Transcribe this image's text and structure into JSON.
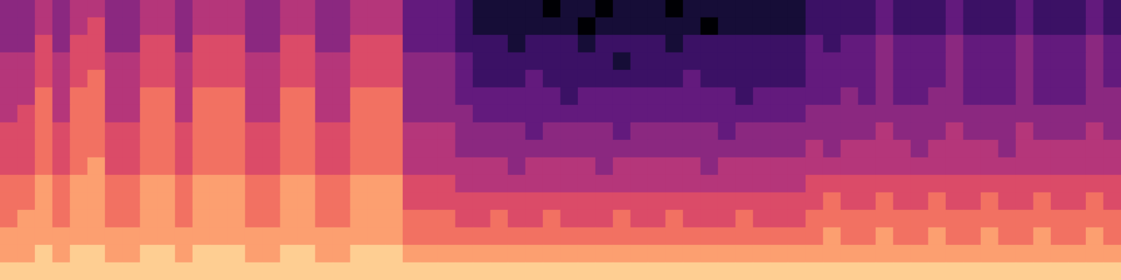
{
  "chart_data": {
    "type": "heatmap",
    "tick_labels": false,
    "clim": [
      0,
      10
    ],
    "cells": [
      [
        4,
        4,
        5,
        4,
        5,
        5,
        4,
        4,
        5,
        5,
        4,
        5,
        5,
        5,
        4,
        4,
        5,
        5,
        4,
        4,
        5,
        5,
        5,
        3,
        3,
        3,
        2,
        1,
        1,
        1,
        1,
        0,
        1,
        1,
        0,
        1,
        1,
        1,
        0,
        1,
        1,
        1,
        1,
        1,
        1,
        1,
        2,
        2,
        2,
        2,
        3,
        2,
        2,
        2,
        3,
        2,
        2,
        2,
        3,
        2,
        2,
        2,
        3,
        2
      ],
      [
        4,
        4,
        5,
        4,
        5,
        6,
        4,
        4,
        5,
        5,
        4,
        5,
        5,
        5,
        4,
        4,
        5,
        5,
        4,
        4,
        5,
        5,
        5,
        3,
        3,
        3,
        2,
        1,
        1,
        1,
        1,
        1,
        1,
        0,
        1,
        1,
        1,
        1,
        1,
        1,
        0,
        1,
        1,
        1,
        1,
        1,
        2,
        2,
        2,
        2,
        3,
        2,
        2,
        2,
        3,
        2,
        2,
        2,
        3,
        2,
        2,
        2,
        3,
        2
      ],
      [
        4,
        4,
        6,
        4,
        6,
        6,
        4,
        4,
        6,
        6,
        4,
        6,
        6,
        6,
        4,
        4,
        6,
        6,
        4,
        4,
        6,
        6,
        6,
        3,
        3,
        3,
        2,
        2,
        2,
        1,
        2,
        2,
        2,
        1,
        2,
        2,
        2,
        2,
        1,
        2,
        2,
        2,
        2,
        2,
        2,
        2,
        3,
        2,
        3,
        3,
        4,
        3,
        3,
        3,
        4,
        3,
        3,
        3,
        4,
        3,
        3,
        3,
        4,
        3
      ],
      [
        5,
        5,
        6,
        5,
        6,
        6,
        5,
        5,
        6,
        6,
        5,
        6,
        6,
        6,
        5,
        5,
        6,
        6,
        5,
        5,
        6,
        6,
        6,
        4,
        4,
        4,
        3,
        2,
        2,
        2,
        2,
        2,
        2,
        2,
        2,
        1,
        2,
        2,
        2,
        2,
        2,
        2,
        2,
        2,
        2,
        2,
        3,
        3,
        3,
        3,
        4,
        3,
        3,
        3,
        4,
        3,
        3,
        3,
        4,
        3,
        3,
        3,
        4,
        3
      ],
      [
        5,
        5,
        6,
        5,
        6,
        7,
        5,
        5,
        6,
        6,
        5,
        6,
        6,
        6,
        5,
        5,
        6,
        6,
        5,
        5,
        6,
        6,
        6,
        4,
        4,
        4,
        3,
        2,
        2,
        2,
        3,
        2,
        2,
        2,
        2,
        2,
        2,
        2,
        2,
        3,
        2,
        2,
        2,
        2,
        2,
        2,
        3,
        3,
        3,
        3,
        4,
        3,
        3,
        3,
        4,
        3,
        3,
        3,
        4,
        3,
        3,
        3,
        4,
        3
      ],
      [
        5,
        5,
        7,
        5,
        7,
        7,
        5,
        5,
        7,
        7,
        5,
        7,
        7,
        7,
        5,
        5,
        7,
        7,
        5,
        5,
        7,
        7,
        7,
        4,
        4,
        4,
        3,
        3,
        3,
        3,
        3,
        3,
        2,
        3,
        3,
        3,
        3,
        3,
        3,
        3,
        3,
        3,
        2,
        3,
        3,
        3,
        3,
        3,
        4,
        3,
        4,
        3,
        3,
        4,
        4,
        3,
        3,
        3,
        4,
        3,
        3,
        3,
        4,
        4
      ],
      [
        5,
        6,
        7,
        5,
        7,
        7,
        5,
        5,
        7,
        7,
        5,
        7,
        7,
        7,
        5,
        5,
        7,
        7,
        5,
        5,
        7,
        7,
        7,
        4,
        4,
        4,
        4,
        3,
        3,
        3,
        3,
        3,
        3,
        3,
        3,
        3,
        3,
        3,
        3,
        3,
        3,
        3,
        3,
        3,
        3,
        3,
        4,
        4,
        4,
        4,
        4,
        4,
        4,
        4,
        4,
        4,
        4,
        4,
        4,
        4,
        4,
        4,
        4,
        4
      ],
      [
        6,
        6,
        7,
        6,
        7,
        7,
        6,
        6,
        7,
        7,
        6,
        7,
        7,
        7,
        6,
        6,
        7,
        7,
        6,
        6,
        7,
        7,
        7,
        5,
        5,
        5,
        4,
        4,
        4,
        4,
        3,
        4,
        4,
        4,
        4,
        3,
        4,
        4,
        4,
        4,
        4,
        3,
        4,
        4,
        4,
        4,
        4,
        4,
        4,
        4,
        5,
        4,
        4,
        4,
        5,
        4,
        4,
        4,
        5,
        4,
        4,
        4,
        5,
        4
      ],
      [
        6,
        6,
        7,
        6,
        7,
        7,
        6,
        6,
        7,
        7,
        6,
        7,
        7,
        7,
        6,
        6,
        7,
        7,
        6,
        6,
        7,
        7,
        7,
        5,
        5,
        5,
        4,
        4,
        4,
        4,
        4,
        4,
        4,
        4,
        4,
        4,
        4,
        4,
        4,
        4,
        4,
        4,
        4,
        4,
        4,
        4,
        5,
        4,
        5,
        5,
        5,
        5,
        4,
        5,
        5,
        5,
        5,
        4,
        5,
        5,
        5,
        5,
        5,
        5
      ],
      [
        6,
        6,
        7,
        6,
        7,
        8,
        6,
        6,
        7,
        7,
        6,
        7,
        7,
        7,
        6,
        6,
        7,
        7,
        6,
        6,
        7,
        7,
        7,
        5,
        5,
        5,
        5,
        5,
        5,
        4,
        5,
        5,
        5,
        5,
        4,
        5,
        5,
        5,
        5,
        5,
        4,
        5,
        5,
        5,
        5,
        5,
        5,
        5,
        5,
        5,
        5,
        5,
        5,
        5,
        5,
        5,
        5,
        5,
        5,
        5,
        5,
        5,
        5,
        5
      ],
      [
        7,
        7,
        8,
        7,
        8,
        8,
        7,
        7,
        8,
        8,
        7,
        8,
        8,
        8,
        7,
        7,
        8,
        8,
        7,
        7,
        8,
        8,
        8,
        6,
        6,
        6,
        5,
        5,
        5,
        5,
        5,
        5,
        5,
        5,
        5,
        5,
        5,
        5,
        5,
        5,
        5,
        5,
        5,
        5,
        5,
        5,
        6,
        6,
        6,
        6,
        6,
        6,
        6,
        6,
        6,
        6,
        6,
        6,
        6,
        6,
        6,
        6,
        6,
        6
      ],
      [
        7,
        7,
        8,
        7,
        8,
        8,
        7,
        7,
        8,
        8,
        7,
        8,
        8,
        8,
        7,
        7,
        8,
        8,
        7,
        7,
        8,
        8,
        8,
        6,
        6,
        6,
        6,
        6,
        6,
        6,
        6,
        6,
        6,
        6,
        6,
        6,
        6,
        6,
        6,
        6,
        6,
        6,
        6,
        6,
        6,
        6,
        6,
        7,
        6,
        6,
        7,
        6,
        6,
        7,
        6,
        6,
        7,
        6,
        6,
        7,
        6,
        6,
        7,
        6
      ],
      [
        7,
        8,
        8,
        7,
        8,
        8,
        7,
        7,
        8,
        8,
        7,
        8,
        8,
        8,
        7,
        7,
        8,
        8,
        7,
        7,
        8,
        8,
        8,
        7,
        7,
        7,
        6,
        6,
        7,
        6,
        6,
        7,
        6,
        6,
        6,
        7,
        6,
        6,
        7,
        6,
        6,
        6,
        7,
        6,
        6,
        6,
        7,
        7,
        7,
        7,
        7,
        7,
        7,
        7,
        7,
        7,
        7,
        7,
        7,
        7,
        7,
        7,
        7,
        7
      ],
      [
        8,
        8,
        8,
        8,
        8,
        8,
        8,
        8,
        8,
        8,
        8,
        8,
        8,
        8,
        8,
        8,
        8,
        8,
        8,
        8,
        8,
        8,
        8,
        7,
        7,
        7,
        7,
        7,
        7,
        7,
        7,
        7,
        7,
        7,
        7,
        7,
        7,
        7,
        7,
        7,
        7,
        7,
        7,
        7,
        7,
        7,
        7,
        8,
        7,
        7,
        8,
        7,
        7,
        8,
        7,
        7,
        8,
        7,
        7,
        8,
        7,
        7,
        8,
        7
      ],
      [
        8,
        8,
        9,
        8,
        9,
        9,
        8,
        8,
        9,
        9,
        8,
        9,
        9,
        9,
        8,
        8,
        9,
        9,
        8,
        8,
        9,
        9,
        9,
        8,
        8,
        8,
        8,
        8,
        8,
        8,
        8,
        8,
        8,
        8,
        8,
        8,
        8,
        8,
        8,
        8,
        8,
        8,
        8,
        8,
        8,
        8,
        8,
        8,
        8,
        8,
        8,
        8,
        8,
        8,
        8,
        8,
        8,
        8,
        8,
        8,
        8,
        8,
        8,
        8
      ],
      [
        9,
        9,
        9,
        9,
        9,
        9,
        9,
        9,
        9,
        9,
        9,
        9,
        9,
        9,
        9,
        9,
        9,
        9,
        9,
        9,
        9,
        9,
        9,
        9,
        9,
        9,
        9,
        9,
        9,
        9,
        9,
        9,
        9,
        9,
        9,
        9,
        9,
        9,
        9,
        9,
        9,
        9,
        9,
        9,
        9,
        9,
        9,
        9,
        9,
        9,
        9,
        9,
        9,
        9,
        9,
        9,
        9,
        9,
        9,
        9,
        9,
        9,
        9,
        9
      ]
    ]
  }
}
